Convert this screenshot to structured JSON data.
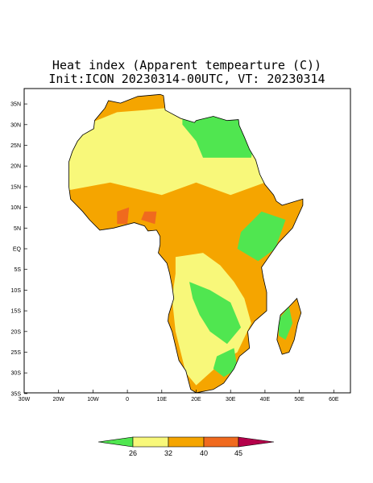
{
  "title": "Heat index (Apparent tempearture (C))",
  "subtitle": "Init:ICON 20230314-00UTC, VT: 20230314",
  "map": {
    "lat_labels": [
      "35N",
      "30N",
      "25N",
      "20N",
      "15N",
      "10N",
      "5N",
      "EQ",
      "5S",
      "10S",
      "15S",
      "20S",
      "25S",
      "30S",
      "35S"
    ],
    "lon_labels": [
      "30W",
      "20W",
      "10W",
      "0",
      "10E",
      "20E",
      "30E",
      "40E",
      "50E",
      "60E"
    ]
  },
  "colorbar": {
    "labels": [
      "26",
      "32",
      "40",
      "45"
    ]
  }
}
